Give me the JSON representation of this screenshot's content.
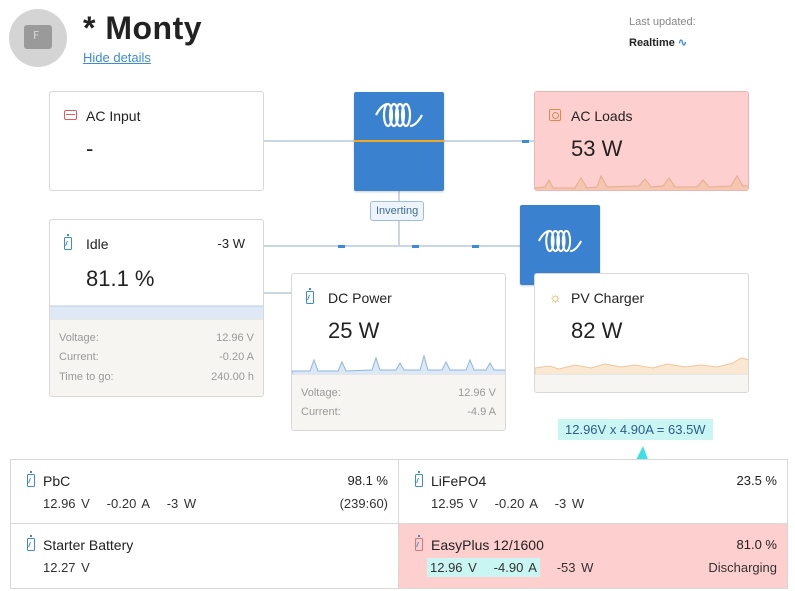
{
  "header": {
    "title": "* Monty",
    "hide_details": "Hide details",
    "last_updated_label": "Last updated:",
    "last_updated_value": "Realtime"
  },
  "ac_input": {
    "title": "AC Input",
    "value": "-"
  },
  "ac_loads": {
    "title": "AC Loads",
    "value": "53 W"
  },
  "inverter": {
    "state": "Inverting"
  },
  "battery": {
    "title": "Idle",
    "power": "-3 W",
    "soc": "81.1 %",
    "voltage_label": "Voltage:",
    "voltage": "12.96 V",
    "current_label": "Current:",
    "current": "-0.20 A",
    "ttg_label": "Time to go:",
    "ttg": "240.00 h"
  },
  "dc_power": {
    "title": "DC Power",
    "value": "25 W",
    "voltage_label": "Voltage:",
    "voltage": "12.96 V",
    "current_label": "Current:",
    "current": "-4.9 A"
  },
  "pv_charger": {
    "title": "PV Charger",
    "value": "82 W"
  },
  "annotation": "12.96V x 4.90A = 63.5W",
  "batteries": [
    {
      "name": "PbC",
      "pct": "98.1 %",
      "voltage": "12.96 V",
      "current": "-0.20 A",
      "power": "-3 W",
      "right": "(239:60)"
    },
    {
      "name": "LiFePO4",
      "pct": "23.5 %",
      "voltage": "12.95 V",
      "current": "-0.20 A",
      "power": "-3 W",
      "right": ""
    },
    {
      "name": "Starter Battery",
      "pct": "",
      "voltage": "12.27 V",
      "current": "",
      "power": "",
      "right": ""
    },
    {
      "name": "EasyPlus 12/1600",
      "pct": "81.0 %",
      "voltage": "12.96 V",
      "current": "-4.90 A",
      "power": "-53 W",
      "right": "Discharging"
    }
  ],
  "colors": {
    "accent": "#3c8bd6",
    "alarm_bg": "#fdd0cf",
    "highlight": "#c9f5f3",
    "arrow": "#3ee0e8",
    "inverter_blue": "#3a82d0",
    "inverter_stripe": "#f0a820"
  },
  "icons": [
    "battery-icon",
    "plug-icon",
    "loads-icon",
    "sun-icon",
    "victron-logo-icon",
    "realtime-wave-icon"
  ]
}
